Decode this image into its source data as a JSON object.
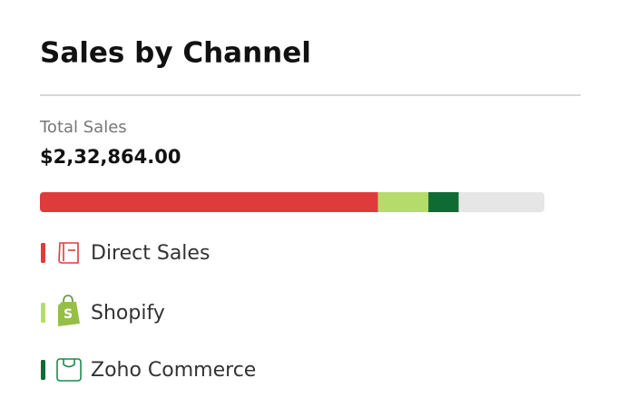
{
  "header": {
    "title": "Sales by Channel"
  },
  "total": {
    "label": "Total Sales",
    "value": "$2,32,864.00"
  },
  "bar": {
    "xlim": [
      0,
      100
    ],
    "series": [
      {
        "name": "Direct Sales",
        "color": "#e03b3b",
        "value": 67
      },
      {
        "name": "Shopify",
        "color": "#b5dc6a",
        "value": 10
      },
      {
        "name": "Zoho Commerce",
        "color": "#0f6b34",
        "value": 6
      }
    ]
  }
}
